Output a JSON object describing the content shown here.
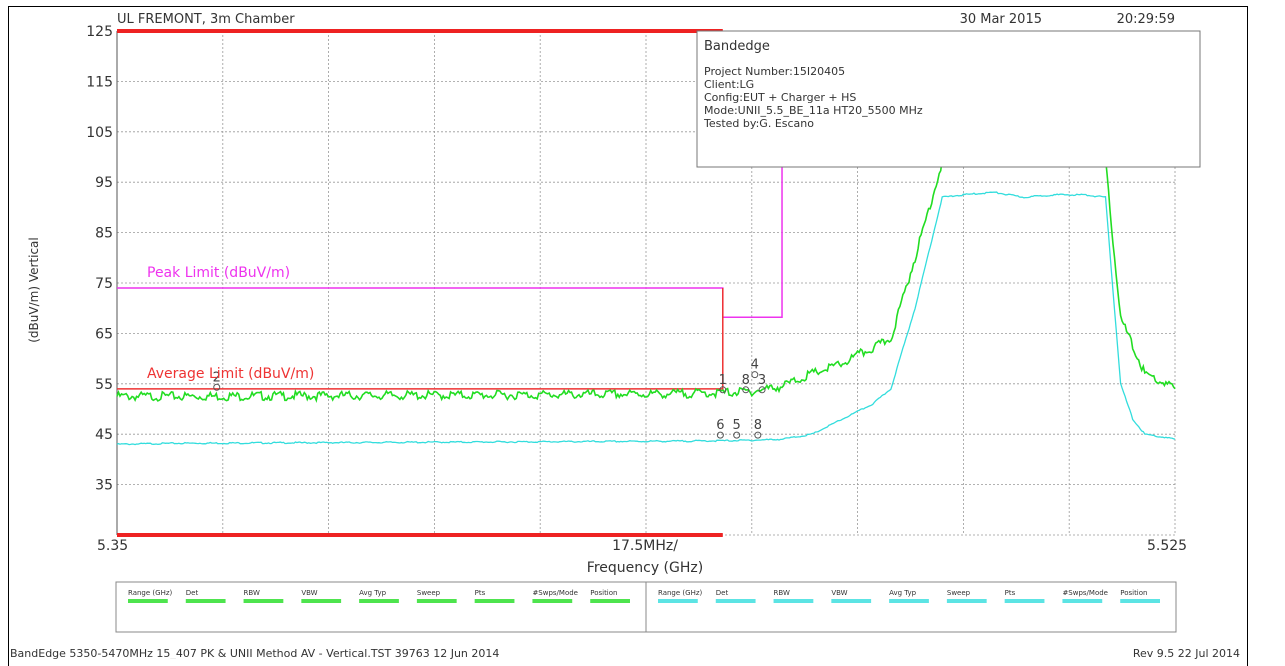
{
  "header": {
    "site": "UL FREMONT, 3m Chamber",
    "date": "30 Mar 2015",
    "time": "20:29:59"
  },
  "infobox": {
    "title": "Bandedge",
    "lines": [
      "Project Number:15I20405",
      "Client:LG",
      "Config:EUT + Charger + HS",
      "Mode:UNII_5.5_BE_11a HT20_5500 MHz",
      "Tested by:G. Escano"
    ]
  },
  "axes": {
    "ylabel": "(dBuV/m) Vertical",
    "xlabel": "Frequency (GHz)",
    "x_start": "5.35",
    "x_end": "5.525",
    "x_span": "17.5MHz/"
  },
  "limits": {
    "peak_label": "Peak Limit (dBuV/m)",
    "avg_label": "Average Limit (dBuV/m)"
  },
  "colors": {
    "peak_trace": "#22dd22",
    "avg_trace": "#33dddd",
    "peak_limit": "#ee33ee",
    "avg_limit": "#ee3333",
    "grid": "#999999",
    "text": "#333333"
  },
  "marker_labels": [
    {
      "text": "4",
      "x": 5.4555,
      "y": 58.0
    },
    {
      "text": "1",
      "x": 5.4502,
      "y": 55.0
    },
    {
      "text": "2",
      "x": 5.3665,
      "y": 55.5
    },
    {
      "text": "8",
      "x": 5.454,
      "y": 55.0
    },
    {
      "text": "3",
      "x": 5.4567,
      "y": 55.0
    },
    {
      "text": "6",
      "x": 5.4498,
      "y": 46.0
    },
    {
      "text": "5",
      "x": 5.4525,
      "y": 46.0
    },
    {
      "text": "8",
      "x": 5.456,
      "y": 46.0
    }
  ],
  "table": {
    "left_headers": [
      "Range (GHz)",
      "Det",
      "RBW",
      "VBW",
      "Avg Typ",
      "Sweep",
      "Pts",
      "#Swps/Mode",
      "Position"
    ],
    "right_headers": [
      "Range (GHz)",
      "Det",
      "RBW",
      "VBW",
      "Avg Typ",
      "Sweep",
      "Pts",
      "#Swps/Mode",
      "Position"
    ]
  },
  "footer": {
    "left": "BandEdge 5350-5470MHz 15_407 PK & UNII Method AV - Vertical.TST 39763 12 Jun 2014",
    "right": "Rev 9.5 22 Jul 2014"
  },
  "chart_data": {
    "type": "line",
    "title": "Bandedge",
    "xlabel": "Frequency (GHz)",
    "ylabel": "(dBuV/m) Vertical",
    "xlim": [
      5.35,
      5.525
    ],
    "ylim": [
      25,
      125
    ],
    "yticks": [
      125,
      115,
      105,
      95,
      85,
      75,
      65,
      55,
      45,
      35
    ],
    "grid": true,
    "series": [
      {
        "name": "Peak",
        "x": [
          5.35,
          5.36,
          5.38,
          5.4,
          5.42,
          5.44,
          5.45,
          5.455,
          5.46,
          5.465,
          5.47,
          5.473,
          5.475,
          5.478,
          5.482,
          5.4865,
          5.49,
          5.495,
          5.5,
          5.505,
          5.51,
          5.5135,
          5.516,
          5.52,
          5.525
        ],
        "y": [
          52.5,
          52.5,
          52.6,
          52.7,
          52.8,
          53,
          53.2,
          53.5,
          54.5,
          57,
          59,
          61,
          62,
          64,
          80,
          99,
          100,
          100,
          99,
          100,
          99.5,
          99,
          68,
          57,
          54
        ]
      },
      {
        "name": "Average",
        "x": [
          5.35,
          5.36,
          5.38,
          5.4,
          5.42,
          5.44,
          5.45,
          5.455,
          5.46,
          5.465,
          5.47,
          5.475,
          5.478,
          5.482,
          5.4865,
          5.49,
          5.495,
          5.5,
          5.505,
          5.51,
          5.5135,
          5.516,
          5.518,
          5.52,
          5.525
        ],
        "y": [
          43,
          43.2,
          43.3,
          43.4,
          43.5,
          43.6,
          43.7,
          43.8,
          44,
          45,
          48,
          51,
          54,
          70,
          92,
          92.5,
          93,
          92,
          92.5,
          92.5,
          92,
          55,
          48,
          45,
          44
        ]
      }
    ],
    "peak_limit": {
      "x": [
        5.35,
        5.4502,
        5.4502,
        5.46,
        5.46
      ],
      "y": [
        74,
        74,
        68.2,
        68.2,
        98
      ]
    },
    "average_limit": {
      "x": [
        5.35,
        5.4502,
        5.4502
      ],
      "y": [
        54,
        54,
        74
      ]
    },
    "range_bars": [
      125,
      25
    ]
  }
}
